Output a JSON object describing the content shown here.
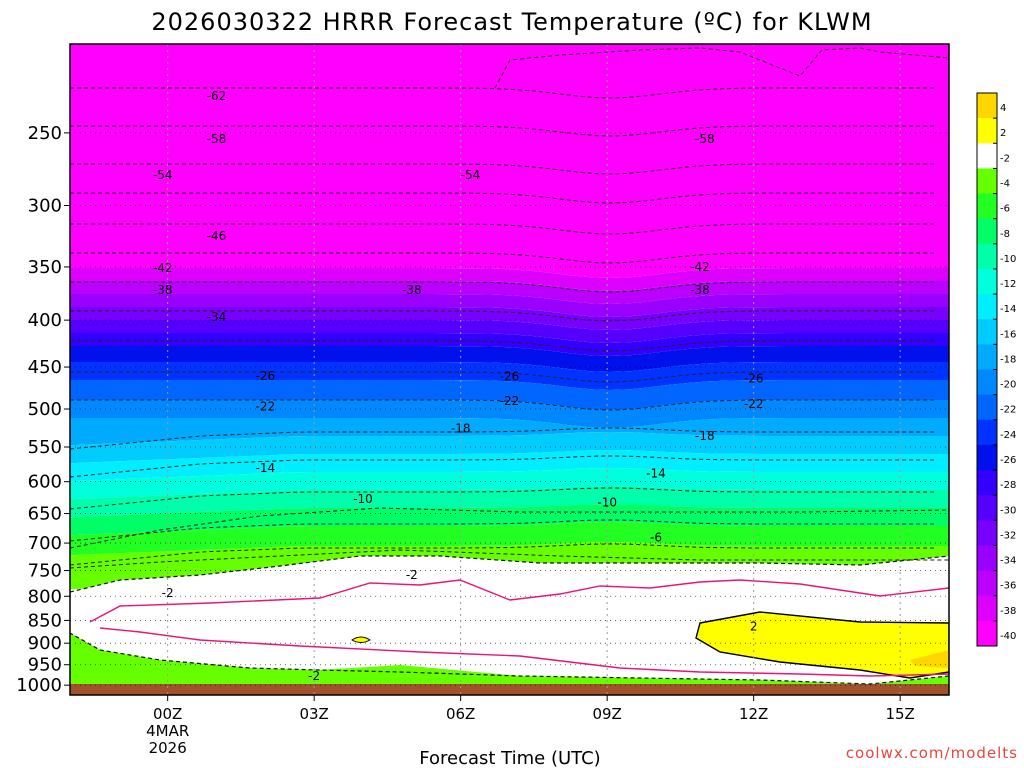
{
  "chart_data": {
    "type": "heatmap",
    "title": "2026030322 HRRR Forecast Temperature (ºC) for KLWM",
    "xlabel": "Forecast Time (UTC)",
    "ylabel": "",
    "credit": "coolwx.com/modelts",
    "x_range_hours": [
      -2,
      16
    ],
    "y_range_hpa": [
      1025,
      200
    ],
    "x_ticks": [
      {
        "hour": 0,
        "label": "00Z",
        "sub1": "4MAR",
        "sub2": "2026"
      },
      {
        "hour": 3,
        "label": "03Z"
      },
      {
        "hour": 6,
        "label": "06Z"
      },
      {
        "hour": 9,
        "label": "09Z"
      },
      {
        "hour": 12,
        "label": "12Z"
      },
      {
        "hour": 15,
        "label": "15Z"
      }
    ],
    "y_ticks": [
      250,
      300,
      350,
      400,
      450,
      500,
      550,
      600,
      650,
      700,
      750,
      800,
      850,
      900,
      950,
      1000
    ],
    "colorbar": {
      "levels": [
        4,
        2,
        -2,
        -4,
        -6,
        -8,
        -10,
        -12,
        -14,
        -16,
        -18,
        -20,
        -22,
        -24,
        -26,
        -28,
        -30,
        -32,
        -34,
        -36,
        -38,
        -40
      ],
      "colors": [
        "#ffd700",
        "#ffff00",
        "#ffffff",
        "#66ff00",
        "#22ff22",
        "#00ff66",
        "#00ffaa",
        "#00ffdd",
        "#00eeff",
        "#00ccff",
        "#00aaff",
        "#0088ff",
        "#0066ff",
        "#0033ff",
        "#0011ee",
        "#3300ff",
        "#5500ff",
        "#7700ff",
        "#9900ff",
        "#bb00ff",
        "#dd00ff",
        "#ff00ff"
      ]
    },
    "contour_labels": [
      {
        "text": "-62",
        "hour": 1.0,
        "p": 228
      },
      {
        "text": "-58",
        "hour": 1.0,
        "p": 254
      },
      {
        "text": "-58",
        "hour": 11.0,
        "p": 254
      },
      {
        "text": "-54",
        "hour": -0.1,
        "p": 278
      },
      {
        "text": "-54",
        "hour": 6.2,
        "p": 278
      },
      {
        "text": "-46",
        "hour": 1.0,
        "p": 324
      },
      {
        "text": "-42",
        "hour": -0.1,
        "p": 351
      },
      {
        "text": "-42",
        "hour": 10.9,
        "p": 350
      },
      {
        "text": "-38",
        "hour": -0.1,
        "p": 371
      },
      {
        "text": "-38",
        "hour": 5.0,
        "p": 371
      },
      {
        "text": "-38",
        "hour": 10.9,
        "p": 371
      },
      {
        "text": "-34",
        "hour": 1.0,
        "p": 397
      },
      {
        "text": "-26",
        "hour": 2.0,
        "p": 460
      },
      {
        "text": "-26",
        "hour": 7.0,
        "p": 461
      },
      {
        "text": "-26",
        "hour": 12.0,
        "p": 463
      },
      {
        "text": "-22",
        "hour": 2.0,
        "p": 497
      },
      {
        "text": "-22",
        "hour": 7.0,
        "p": 490
      },
      {
        "text": "-22",
        "hour": 12.0,
        "p": 494
      },
      {
        "text": "-18",
        "hour": 6.0,
        "p": 525
      },
      {
        "text": "-18",
        "hour": 11.0,
        "p": 535
      },
      {
        "text": "-14",
        "hour": 2.0,
        "p": 580
      },
      {
        "text": "-14",
        "hour": 10.0,
        "p": 588
      },
      {
        "text": "-10",
        "hour": 4.0,
        "p": 627
      },
      {
        "text": "-10",
        "hour": 9.0,
        "p": 632
      },
      {
        "text": "-6",
        "hour": 10.0,
        "p": 690
      },
      {
        "text": "-2",
        "hour": 5.0,
        "p": 758
      },
      {
        "text": "-2",
        "hour": 0.0,
        "p": 793
      },
      {
        "text": "2",
        "hour": 12.0,
        "p": 863
      },
      {
        "text": "-2",
        "hour": 3.0,
        "p": 977
      }
    ]
  }
}
